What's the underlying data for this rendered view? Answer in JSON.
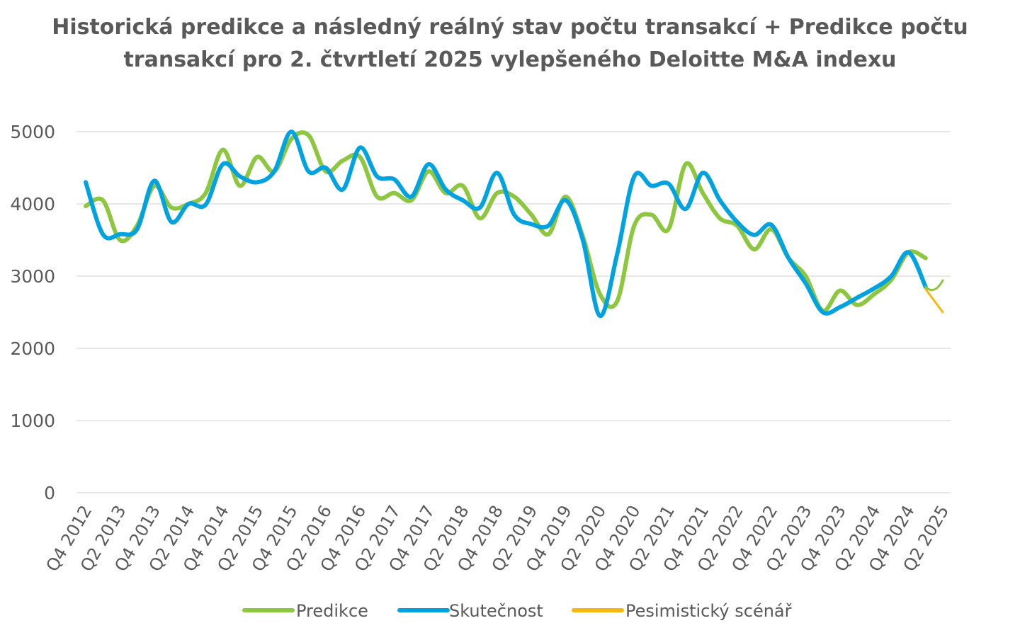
{
  "chart_data": {
    "type": "line",
    "title_lines": [
      "Historická predikce a následný reálný stav počtu transakcí + Predikce počtu",
      "transakcí pro 2. čtvrtletí 2025 vylepšeného Deloitte M&A indexu"
    ],
    "ylim": [
      0,
      5000
    ],
    "yticks": [
      "0",
      "1000",
      "2000",
      "3000",
      "4000",
      "5000"
    ],
    "grid": true,
    "legend_position": "bottom",
    "categories": [
      "Q4 2012",
      "Q1 2013",
      "Q2 2013",
      "Q3 2013",
      "Q4 2013",
      "Q1 2014",
      "Q2 2014",
      "Q3 2014",
      "Q4 2014",
      "Q1 2015",
      "Q2 2015",
      "Q3 2015",
      "Q4 2015",
      "Q1 2016",
      "Q2 2016",
      "Q3 2016",
      "Q4 2016",
      "Q1 2017",
      "Q2 2017",
      "Q3 2017",
      "Q4 2017",
      "Q1 2018",
      "Q2 2018",
      "Q3 2018",
      "Q4 2018",
      "Q1 2019",
      "Q2 2019",
      "Q3 2019",
      "Q4 2019",
      "Q1 2020",
      "Q2 2020",
      "Q3 2020",
      "Q4 2020",
      "Q1 2021",
      "Q2 2021",
      "Q3 2021",
      "Q4 2021",
      "Q1 2022",
      "Q2 2022",
      "Q3 2022",
      "Q4 2022",
      "Q1 2023",
      "Q2 2023",
      "Q3 2023",
      "Q4 2023",
      "Q1 2024",
      "Q2 2024",
      "Q3 2024",
      "Q4 2024",
      "Q1 2025",
      "Q2 2025"
    ],
    "xtick_labels": [
      "Q4 2012",
      "Q2 2013",
      "Q4 2013",
      "Q2 2014",
      "Q4 2014",
      "Q2 2015",
      "Q4 2015",
      "Q2 2016",
      "Q4 2016",
      "Q2 2017",
      "Q4 2017",
      "Q2 2018",
      "Q4 2018",
      "Q2 2019",
      "Q4 2019",
      "Q2 2020",
      "Q4 2020",
      "Q2 2021",
      "Q4 2021",
      "Q2 2022",
      "Q4 2022",
      "Q2 2023",
      "Q4 2023",
      "Q2 2024",
      "Q4 2024",
      "Q2 2025"
    ],
    "series": [
      {
        "name": "Predikce",
        "color": "#8DC63F",
        "values": [
          3970,
          4050,
          3500,
          3700,
          4250,
          3950,
          4000,
          4150,
          4750,
          4250,
          4650,
          4450,
          4900,
          4950,
          4450,
          4600,
          4650,
          4100,
          4150,
          4050,
          4450,
          4150,
          4250,
          3800,
          4150,
          4100,
          3850,
          3580,
          4100,
          3550,
          2750,
          2650,
          3700,
          3850,
          3650,
          4550,
          4150,
          3800,
          3700,
          3370,
          3650,
          3250,
          3000,
          2520,
          2800,
          2600,
          2750,
          2950,
          3330,
          3250,
          null
        ]
      },
      {
        "name": "Skutečnost",
        "color": "#00A3E0",
        "values": [
          4300,
          3580,
          3580,
          3650,
          4320,
          3750,
          4000,
          3990,
          4550,
          4380,
          4300,
          4450,
          5000,
          4450,
          4500,
          4200,
          4780,
          4380,
          4340,
          4100,
          4550,
          4200,
          4050,
          3950,
          4430,
          3850,
          3720,
          3700,
          4050,
          3500,
          2450,
          3300,
          4380,
          4250,
          4280,
          3930,
          4430,
          4050,
          3750,
          3570,
          3710,
          3250,
          2900,
          2500,
          2570,
          2700,
          2830,
          3000,
          3330,
          2850,
          null
        ]
      },
      {
        "name": "Pesimistický scénář",
        "color": "#F6B80E",
        "values": [
          null,
          null,
          null,
          null,
          null,
          null,
          null,
          null,
          null,
          null,
          null,
          null,
          null,
          null,
          null,
          null,
          null,
          null,
          null,
          null,
          null,
          null,
          null,
          null,
          null,
          null,
          null,
          null,
          null,
          null,
          null,
          null,
          null,
          null,
          null,
          null,
          null,
          null,
          null,
          null,
          null,
          null,
          null,
          null,
          null,
          null,
          null,
          null,
          null,
          2820,
          2500
        ]
      }
    ],
    "predikce_q2_2025": 2940
  }
}
